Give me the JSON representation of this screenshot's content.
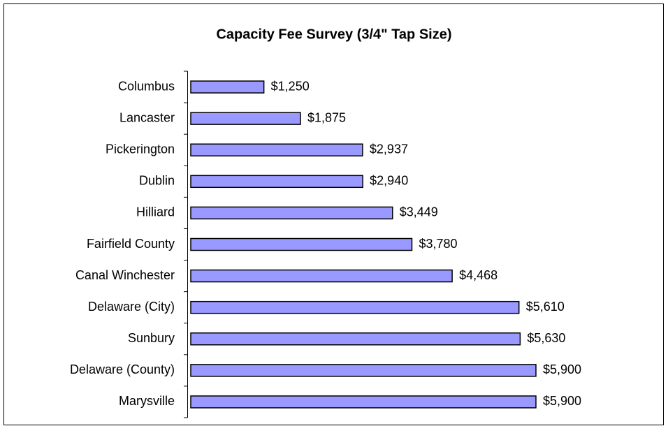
{
  "chart_data": {
    "type": "bar",
    "orientation": "horizontal",
    "title": "Capacity Fee Survey (3/4\" Tap Size)",
    "categories": [
      "Columbus",
      "Lancaster",
      "Pickerington",
      "Dublin",
      "Hilliard",
      "Fairfield County",
      "Canal Winchester",
      "Delaware (City)",
      "Sunbury",
      "Delaware (County)",
      "Marysville"
    ],
    "values": [
      1250,
      1875,
      2937,
      2940,
      3449,
      3780,
      4468,
      5610,
      5630,
      5900,
      5900
    ],
    "value_labels": [
      "$1,250",
      "$1,875",
      "$2,937",
      "$2,940",
      "$3,449",
      "$3,780",
      "$4,468",
      "$5,610",
      "$5,630",
      "$5,900",
      "$5,900"
    ],
    "color": "#9999ff"
  }
}
